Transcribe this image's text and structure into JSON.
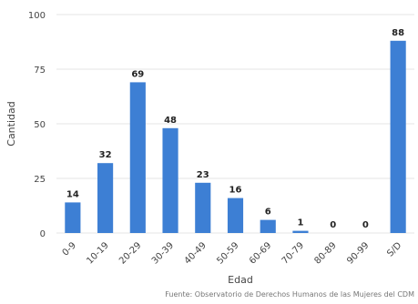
{
  "chart_data": {
    "type": "bar",
    "categories": [
      "0-9",
      "10-19",
      "20-29",
      "30-39",
      "40-49",
      "50-59",
      "60-69",
      "70-79",
      "80-89",
      "90-99",
      "S/D"
    ],
    "values": [
      14,
      32,
      69,
      48,
      23,
      16,
      6,
      1,
      0,
      0,
      88
    ],
    "xlabel": "Edad",
    "ylabel": "Cantidad",
    "ylim": [
      0,
      100
    ],
    "yticks": [
      0,
      25,
      50,
      75,
      100
    ],
    "bar_color": "#3d7fd4",
    "grid_color": "#e6e6e6",
    "grid": true,
    "credit": "Fuente: Observatorio de Derechos Humanos de las Mujeres del CDM"
  }
}
